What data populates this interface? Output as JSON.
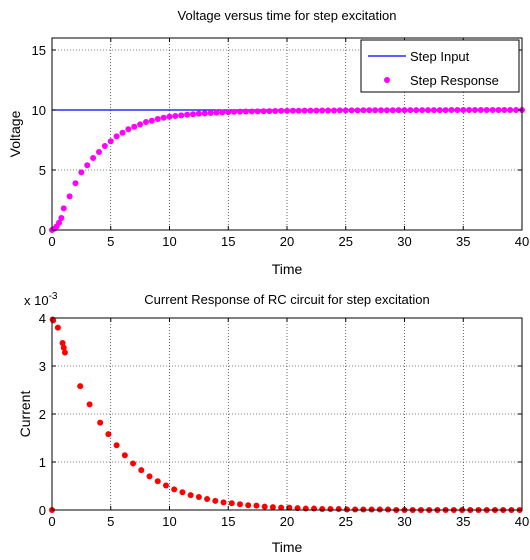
{
  "chart_data": [
    {
      "type": "line",
      "title": "Voltage versus time for step excitation",
      "xlabel": "Time",
      "ylabel": "Voltage",
      "xlim": [
        0,
        40
      ],
      "ylim": [
        0,
        16
      ],
      "xticks": [
        "0",
        "5",
        "10",
        "15",
        "20",
        "25",
        "30",
        "35",
        "40"
      ],
      "yticks": [
        "0",
        "5",
        "10",
        "15"
      ],
      "grid": true,
      "legend_position": "top-right",
      "series": [
        {
          "name": "Step Input",
          "style": "line",
          "color": "#0000ff",
          "x": [
            0,
            40
          ],
          "y": [
            10,
            10
          ]
        },
        {
          "name": "Step Response",
          "style": "markers",
          "color": "#ff00ff",
          "x": [
            0,
            0.2,
            0.4,
            0.6,
            0.8,
            1,
            1.5,
            2,
            2.5,
            3,
            3.5,
            4,
            4.5,
            5,
            5.5,
            6,
            6.5,
            7,
            7.5,
            8,
            8.5,
            9,
            9.5,
            10,
            10.5,
            11,
            11.5,
            12,
            12.5,
            13,
            13.5,
            14,
            14.5,
            15,
            15.5,
            16,
            16.5,
            17,
            17.5,
            18,
            18.5,
            19,
            19.5,
            20,
            20.5,
            21,
            21.5,
            22,
            22.5,
            23,
            23.5,
            24,
            24.5,
            25,
            25.5,
            26,
            26.5,
            27,
            27.5,
            28,
            28.5,
            29,
            29.5,
            30,
            30.5,
            31,
            31.5,
            32,
            32.5,
            33,
            33.5,
            34,
            34.5,
            35,
            35.5,
            36,
            36.5,
            37,
            37.5,
            38,
            38.5,
            39,
            39.5,
            40
          ],
          "y": [
            0,
            0.1,
            0.3,
            0.6,
            1.0,
            1.8,
            2.8,
            3.9,
            4.8,
            5.4,
            6.0,
            6.5,
            7.0,
            7.4,
            7.8,
            8.1,
            8.4,
            8.6,
            8.8,
            9.0,
            9.1,
            9.25,
            9.35,
            9.45,
            9.5,
            9.55,
            9.6,
            9.65,
            9.7,
            9.72,
            9.75,
            9.78,
            9.8,
            9.82,
            9.84,
            9.86,
            9.87,
            9.88,
            9.89,
            9.9,
            9.91,
            9.92,
            9.93,
            9.93,
            9.94,
            9.94,
            9.95,
            9.95,
            9.95,
            9.96,
            9.96,
            9.96,
            9.97,
            9.97,
            9.97,
            9.97,
            9.98,
            9.98,
            9.98,
            9.98,
            9.98,
            9.98,
            9.99,
            9.99,
            9.99,
            9.99,
            9.99,
            9.99,
            9.99,
            9.99,
            9.99,
            10,
            10,
            10,
            10,
            10,
            10,
            10,
            10,
            10,
            10,
            10,
            10,
            10
          ]
        }
      ]
    },
    {
      "type": "scatter",
      "title": "Current Response of RC circuit for step excitation",
      "xlabel": "Time",
      "ylabel": "Current",
      "y_exponent_label": "x 10",
      "y_exponent_power": "-3",
      "xlim": [
        0,
        40
      ],
      "ylim": [
        0,
        4
      ],
      "xticks": [
        "0",
        "5",
        "10",
        "15",
        "20",
        "25",
        "30",
        "35",
        "40"
      ],
      "yticks": [
        "0",
        "1",
        "2",
        "3",
        "4"
      ],
      "grid": true,
      "series": [
        {
          "name": "",
          "style": "markers",
          "color": "#ff0000",
          "x": [
            0,
            0.05,
            0.1,
            0.5,
            0.9,
            1.0,
            1.1,
            2.4,
            3.2,
            4.1,
            4.8,
            5.5,
            6.2,
            6.9,
            7.6,
            8.3,
            9.0,
            9.7,
            10.4,
            11.1,
            11.8,
            12.5,
            13.2,
            13.9,
            14.6,
            15.3,
            16.0,
            16.7,
            17.4,
            18.1,
            18.8,
            19.5,
            20.2,
            20.9,
            21.6,
            22.3,
            23.0,
            23.7,
            24.4,
            25.1,
            25.8,
            26.5,
            27.2,
            27.9,
            28.6,
            29.3,
            30.0,
            30.7,
            31.4,
            32.1,
            32.8,
            33.5,
            34.2,
            34.9,
            35.6,
            36.3,
            37.0,
            37.7,
            38.4,
            39.1,
            39.8
          ],
          "y": [
            0,
            3.97,
            3.95,
            3.8,
            3.48,
            3.38,
            3.28,
            2.58,
            2.2,
            1.82,
            1.58,
            1.35,
            1.14,
            0.97,
            0.83,
            0.7,
            0.6,
            0.51,
            0.43,
            0.37,
            0.31,
            0.27,
            0.23,
            0.19,
            0.16,
            0.14,
            0.12,
            0.1,
            0.09,
            0.07,
            0.06,
            0.05,
            0.05,
            0.04,
            0.03,
            0.03,
            0.02,
            0.02,
            0.02,
            0.01,
            0.01,
            0.01,
            0.01,
            0.01,
            0.01,
            0,
            0,
            0,
            0,
            0,
            0,
            0,
            0,
            0,
            0,
            0,
            0,
            0,
            0,
            0,
            0
          ]
        }
      ]
    }
  ]
}
